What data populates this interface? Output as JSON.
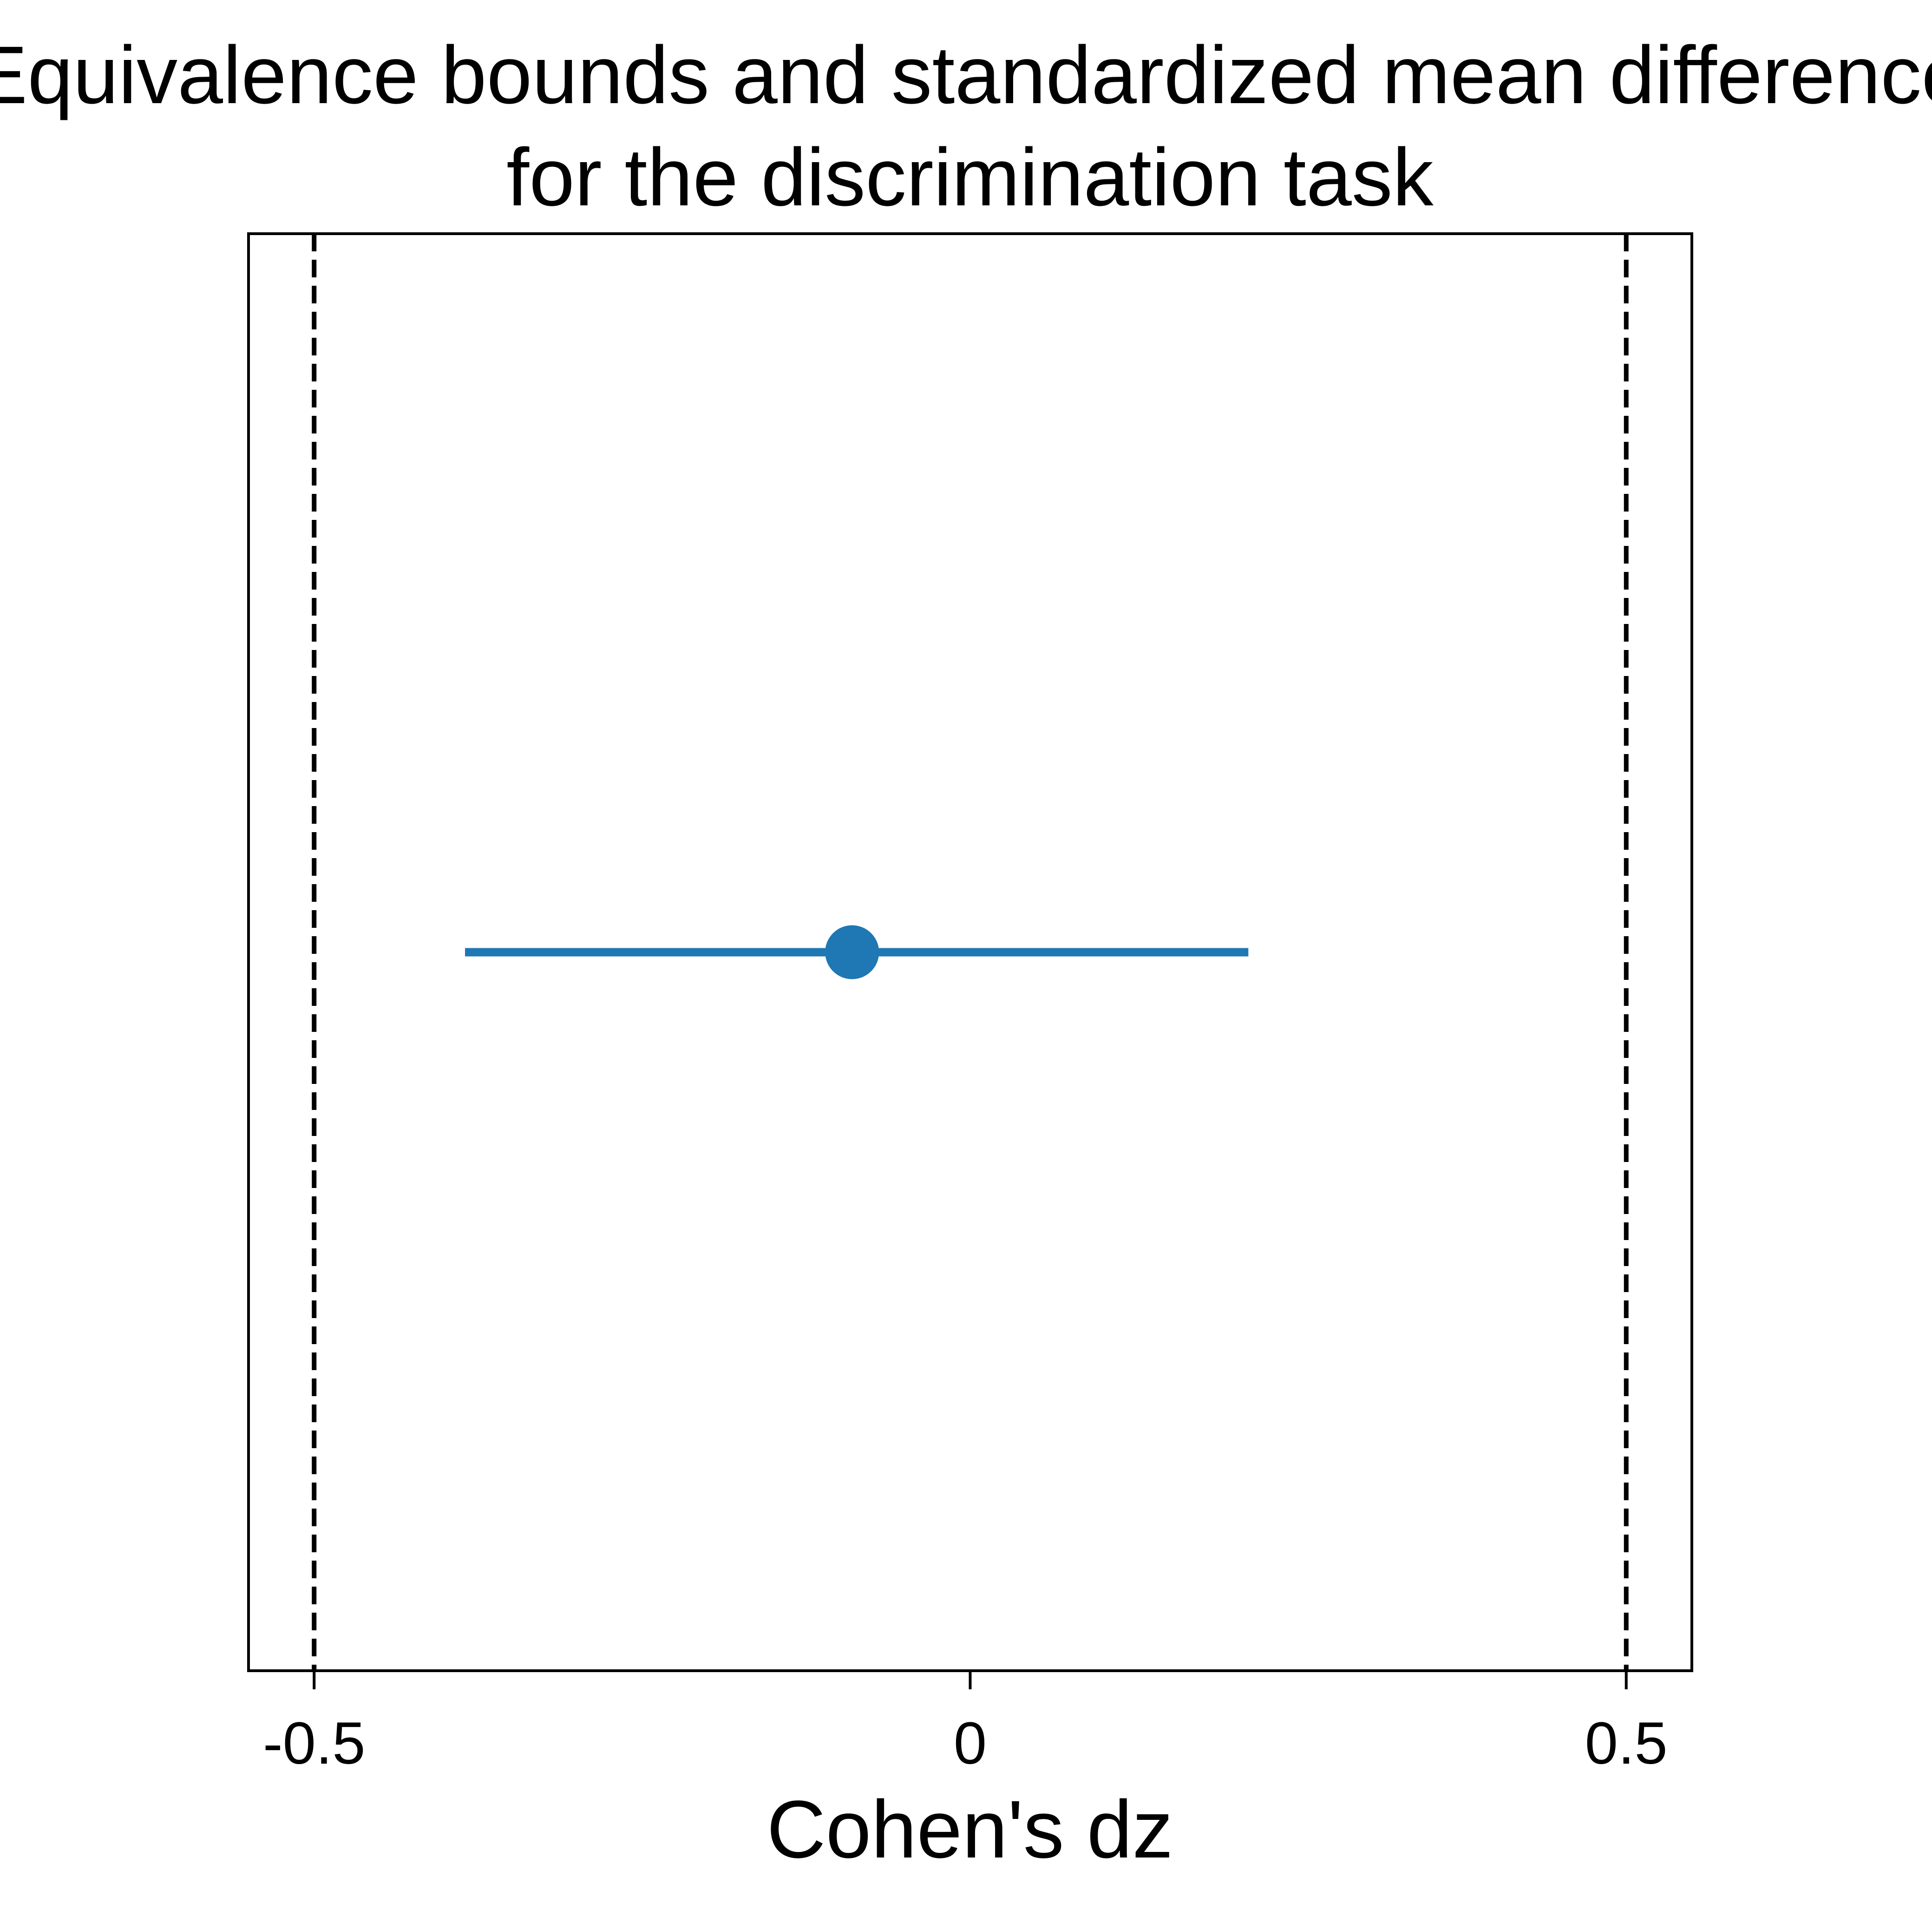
{
  "chart_data": {
    "type": "scatter",
    "title": "Equivalence bounds and standardized mean difference\nfor the discrimination task",
    "title_lines": [
      "Equivalence bounds and standardized mean difference",
      "for the discrimination task"
    ],
    "xlabel": "Cohen's dz",
    "ylabel": "",
    "xlim": [
      -0.55,
      0.55
    ],
    "ylim": [
      0,
      1
    ],
    "grid": false,
    "x_ticks": [
      -0.5,
      0,
      0.5
    ],
    "x_tick_labels": [
      "-0.5",
      "0",
      "0.5"
    ],
    "equivalence_bounds": [
      -0.5,
      0.5
    ],
    "estimate": {
      "x": -0.09,
      "ci_low": -0.385,
      "ci_high": 0.212,
      "y": 0.5
    },
    "colors": {
      "estimate": "#1f77b4",
      "bounds": "#000000",
      "frame": "#000000",
      "text": "#000000"
    }
  }
}
